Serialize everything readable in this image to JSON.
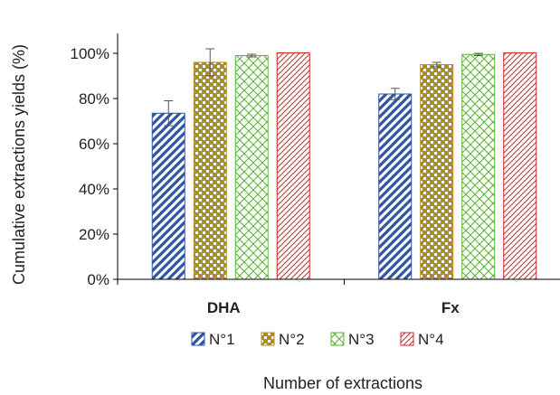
{
  "chart_data": {
    "type": "bar",
    "title": "",
    "xlabel": "Number of extractions",
    "ylabel": "Cumulative extractions yields (%)",
    "categories": [
      "DHA",
      "Fx"
    ],
    "ylim": [
      0,
      100
    ],
    "yticks": [
      0,
      20,
      40,
      60,
      80,
      100
    ],
    "ytick_labels": [
      "0%",
      "20%",
      "40%",
      "60%",
      "80%",
      "100%"
    ],
    "grid": false,
    "legend_position": "bottom",
    "series": [
      {
        "name": "N°1",
        "values": [
          73.5,
          82
        ],
        "errors": [
          5.5,
          2.5
        ],
        "color": "#2f55a4",
        "pattern": "diagonal"
      },
      {
        "name": "N°2",
        "values": [
          96,
          95
        ],
        "errors": [
          6,
          1
        ],
        "color": "#b38a1c",
        "pattern": "checker"
      },
      {
        "name": "N°3",
        "values": [
          99,
          99.5
        ],
        "errors": [
          0.6,
          0.5
        ],
        "color": "#5fb33a",
        "pattern": "lattice"
      },
      {
        "name": "N°4",
        "values": [
          100.2,
          100.2
        ],
        "errors": [
          0,
          0
        ],
        "color": "#d0272e",
        "pattern": "hatch"
      }
    ]
  }
}
